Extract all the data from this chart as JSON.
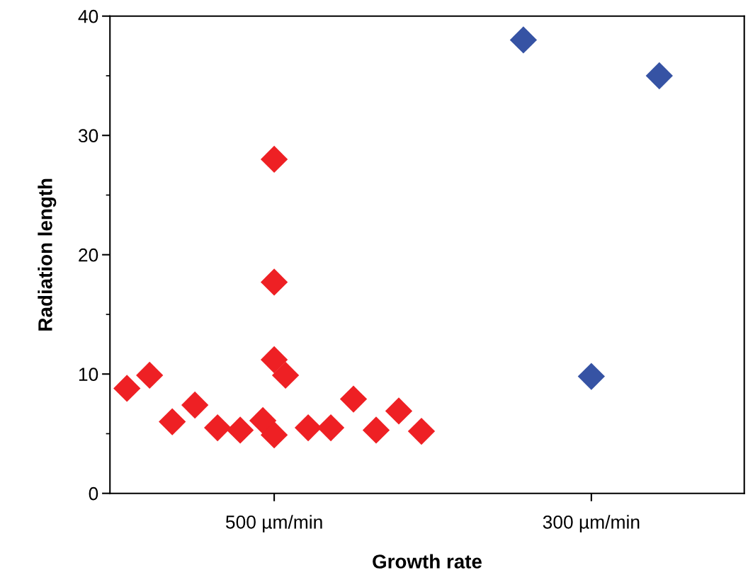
{
  "chart_data": {
    "type": "scatter",
    "xlabel": "Growth rate",
    "ylabel": "Radiation length",
    "categories": [
      null,
      null,
      null,
      null,
      null,
      null,
      null,
      null,
      null,
      null,
      null,
      null,
      null,
      null,
      "500 µm/min",
      null,
      null,
      null,
      null,
      null,
      null,
      null,
      null,
      null,
      null,
      null,
      null,
      null,
      null,
      null,
      null,
      null,
      null,
      null,
      null,
      null,
      null,
      null,
      null,
      null,
      null,
      null,
      "300 µm/min",
      null,
      null,
      null,
      null,
      null,
      null,
      null,
      null,
      null,
      null,
      null,
      null,
      null
    ],
    "ylim": [
      0,
      40
    ],
    "yticks": [
      0,
      10,
      20,
      30,
      40
    ],
    "marker": "diamond",
    "grid": false,
    "legend": false,
    "series": [
      {
        "color": "#ee2024",
        "values": [
          null,
          8.8,
          null,
          9.9,
          null,
          6.0,
          null,
          7.4,
          null,
          5.5,
          null,
          5.3,
          null,
          6.1,
          4.9,
          9.9,
          null,
          5.5,
          null,
          5.5,
          null,
          7.9,
          null,
          5.3,
          null,
          6.9,
          null,
          5.2,
          null,
          null,
          null,
          null,
          null,
          null,
          null,
          null,
          null,
          null,
          null,
          null,
          null,
          null,
          null,
          null,
          null,
          null,
          null,
          null,
          null,
          null,
          null,
          null,
          null,
          null,
          null,
          null
        ]
      },
      {
        "color": "#ee2024",
        "values": [
          null,
          null,
          null,
          null,
          null,
          null,
          null,
          null,
          null,
          null,
          null,
          null,
          null,
          null,
          11.2,
          null,
          null,
          null,
          null,
          null,
          null,
          null,
          null,
          null,
          null,
          null,
          null,
          null,
          null,
          null,
          null,
          null,
          null,
          null,
          null,
          null,
          null,
          null,
          null,
          null,
          null,
          null,
          null,
          null,
          null,
          null,
          null,
          null,
          null,
          null,
          null,
          null,
          null,
          null,
          null,
          null
        ]
      },
      {
        "color": "#ee2024",
        "values": [
          null,
          null,
          null,
          null,
          null,
          null,
          null,
          null,
          null,
          null,
          null,
          null,
          null,
          null,
          17.7,
          null,
          null,
          null,
          null,
          null,
          null,
          null,
          null,
          null,
          null,
          null,
          null,
          null,
          null,
          null,
          null,
          null,
          null,
          null,
          null,
          null,
          null,
          null,
          null,
          null,
          null,
          null,
          null,
          null,
          null,
          null,
          null,
          null,
          null,
          null,
          null,
          null,
          null,
          null,
          null,
          null
        ]
      },
      {
        "color": "#ee2024",
        "values": [
          null,
          null,
          null,
          null,
          null,
          null,
          null,
          null,
          null,
          null,
          null,
          null,
          null,
          null,
          28.0,
          null,
          null,
          null,
          null,
          null,
          null,
          null,
          null,
          null,
          null,
          null,
          null,
          null,
          null,
          null,
          null,
          null,
          null,
          null,
          null,
          null,
          null,
          null,
          null,
          null,
          null,
          null,
          null,
          null,
          null,
          null,
          null,
          null,
          null,
          null,
          null,
          null,
          null,
          null,
          null,
          null
        ]
      },
      {
        "color": "#3653a4",
        "values": [
          null,
          null,
          null,
          null,
          null,
          null,
          null,
          null,
          null,
          null,
          null,
          null,
          null,
          null,
          null,
          null,
          null,
          null,
          null,
          null,
          null,
          null,
          null,
          null,
          null,
          null,
          null,
          null,
          null,
          null,
          null,
          null,
          null,
          null,
          null,
          null,
          38,
          null,
          null,
          null,
          null,
          null,
          9.8,
          null,
          null,
          null,
          null,
          null,
          35,
          null,
          null,
          null,
          null,
          null,
          null,
          null
        ]
      }
    ]
  }
}
